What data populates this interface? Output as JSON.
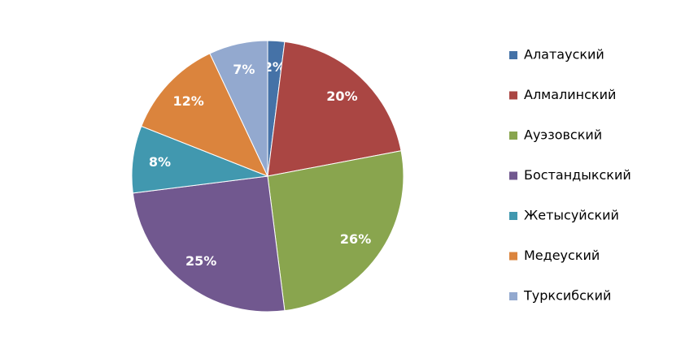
{
  "chart_data": {
    "type": "pie",
    "categories": [
      "Алатауский",
      "Алмалинский",
      "Ауэзовский",
      "Бостандыкский",
      "Жетысуйский",
      "Медеуский",
      "Турксибский"
    ],
    "values": [
      2,
      20,
      26,
      25,
      8,
      12,
      7
    ],
    "value_labels": [
      "2%",
      "20%",
      "26%",
      "25%",
      "8%",
      "12%",
      "7%"
    ],
    "colors": [
      "#4572a7",
      "#aa4643",
      "#89a54e",
      "#71588f",
      "#4198af",
      "#db843d",
      "#93a9cf"
    ],
    "legend": "right"
  }
}
